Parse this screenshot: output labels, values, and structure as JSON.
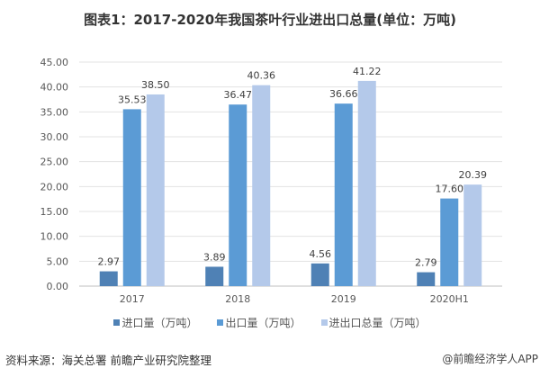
{
  "chart_data": {
    "type": "bar",
    "title": "图表1：2017-2020年我国茶叶行业进出口总量(单位：万吨)",
    "categories": [
      "2017",
      "2018",
      "2019",
      "2020H1"
    ],
    "series": [
      {
        "name": "进口量（万吨）",
        "values": [
          2.97,
          3.89,
          4.56,
          2.79
        ],
        "color": "#4f81b5"
      },
      {
        "name": "出口量（万吨）",
        "values": [
          35.53,
          36.47,
          36.66,
          17.6
        ],
        "color": "#5b9bd5"
      },
      {
        "name": "进出口总量（万吨）",
        "values": [
          38.5,
          40.36,
          41.22,
          20.39
        ],
        "color": "#b4c9ea"
      }
    ],
    "yticks": [
      "0.00",
      "5.00",
      "10.00",
      "15.00",
      "20.00",
      "25.00",
      "30.00",
      "35.00",
      "40.00",
      "45.00"
    ],
    "ylim": [
      0,
      45
    ],
    "xlabel": "",
    "ylabel": "",
    "grid": true,
    "legend": "bottom"
  },
  "footer": {
    "source": "资料来源：海关总署 前瞻产业研究院整理",
    "brand": "@前瞻经济学人APP"
  }
}
